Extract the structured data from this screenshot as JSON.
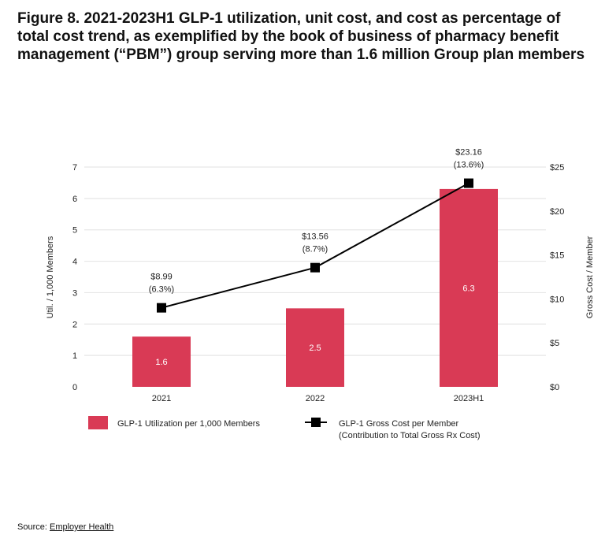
{
  "title": "Figure 8. 2021-2023H1 GLP-1 utilization, unit cost, and cost as percentage of total cost trend, as exemplified by the book of business of pharmacy benefit management (“PBM”) group serving more than 1.6 million Group plan members",
  "source": {
    "label": "Source:",
    "link": "Employer Health"
  },
  "chart_data": {
    "type": "bar+line",
    "categories": [
      "2021",
      "2022",
      "2023H1"
    ],
    "left_axis": {
      "label": "Util. / 1,000 Members",
      "range": [
        0,
        7
      ],
      "ticks": [
        "0",
        "1",
        "2",
        "3",
        "4",
        "5",
        "6",
        "7"
      ]
    },
    "right_axis": {
      "label": "Gross Cost / Member",
      "range": [
        0,
        25
      ],
      "ticks": [
        "$0",
        "$5",
        "$10",
        "$15",
        "$20",
        "$25"
      ]
    },
    "grid": true,
    "legend_position": "bottom",
    "series": [
      {
        "name": "GLP-1 Utilization per 1,000 Members",
        "type": "bar",
        "axis": "left",
        "color": "#d93a55",
        "values": [
          1.6,
          2.5,
          6.3
        ],
        "labels": [
          "1.6",
          "2.5",
          "6.3"
        ]
      },
      {
        "name": "GLP-1 Gross Cost per Member",
        "name_line2": "(Contribution to Total Gross Rx Cost)",
        "type": "line",
        "axis": "right",
        "color": "#000000",
        "marker": "square",
        "values": [
          8.99,
          13.56,
          23.16
        ],
        "labels": [
          "$8.99",
          "$13.56",
          "$23.16"
        ],
        "sublabels": [
          "(6.3%)",
          "(8.7%)",
          "(13.6%)"
        ]
      }
    ]
  }
}
